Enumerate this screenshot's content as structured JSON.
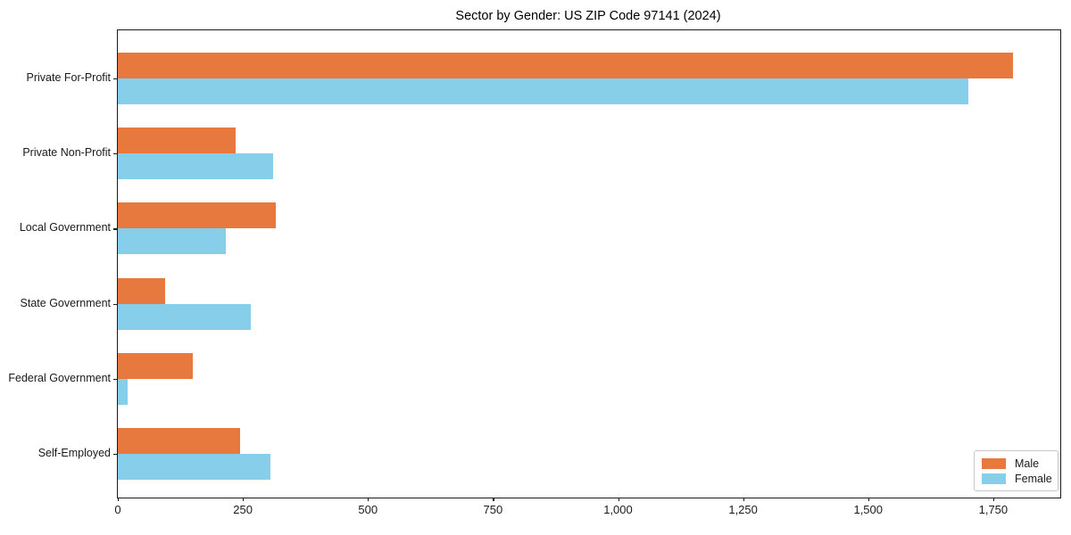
{
  "page": {
    "background": "#ffffff"
  },
  "chart_data": {
    "type": "bar",
    "orientation": "horizontal",
    "title": "Sector by Gender: US ZIP Code 97141 (2024)",
    "categories": [
      "Private For-Profit",
      "Private Non-Profit",
      "Local Government",
      "State Government",
      "Federal Government",
      "Self-Employed"
    ],
    "series": [
      {
        "name": "Male",
        "color": "#e8793e",
        "values": [
          1790,
          235,
          315,
          95,
          150,
          245
        ]
      },
      {
        "name": "Female",
        "color": "#87ceeb",
        "values": [
          1700,
          310,
          215,
          265,
          20,
          305
        ]
      }
    ],
    "xlim": [
      0,
      1884
    ],
    "x_ticks": [
      0,
      250,
      500,
      750,
      1000,
      1250,
      1500,
      1750
    ],
    "x_tick_labels": [
      "0",
      "250",
      "500",
      "750",
      "1,000",
      "1,250",
      "1,500",
      "1,750"
    ],
    "xlabel": "",
    "ylabel": "",
    "grid": false,
    "legend_position": "lower right",
    "axis_color": "#1a1a1a"
  }
}
